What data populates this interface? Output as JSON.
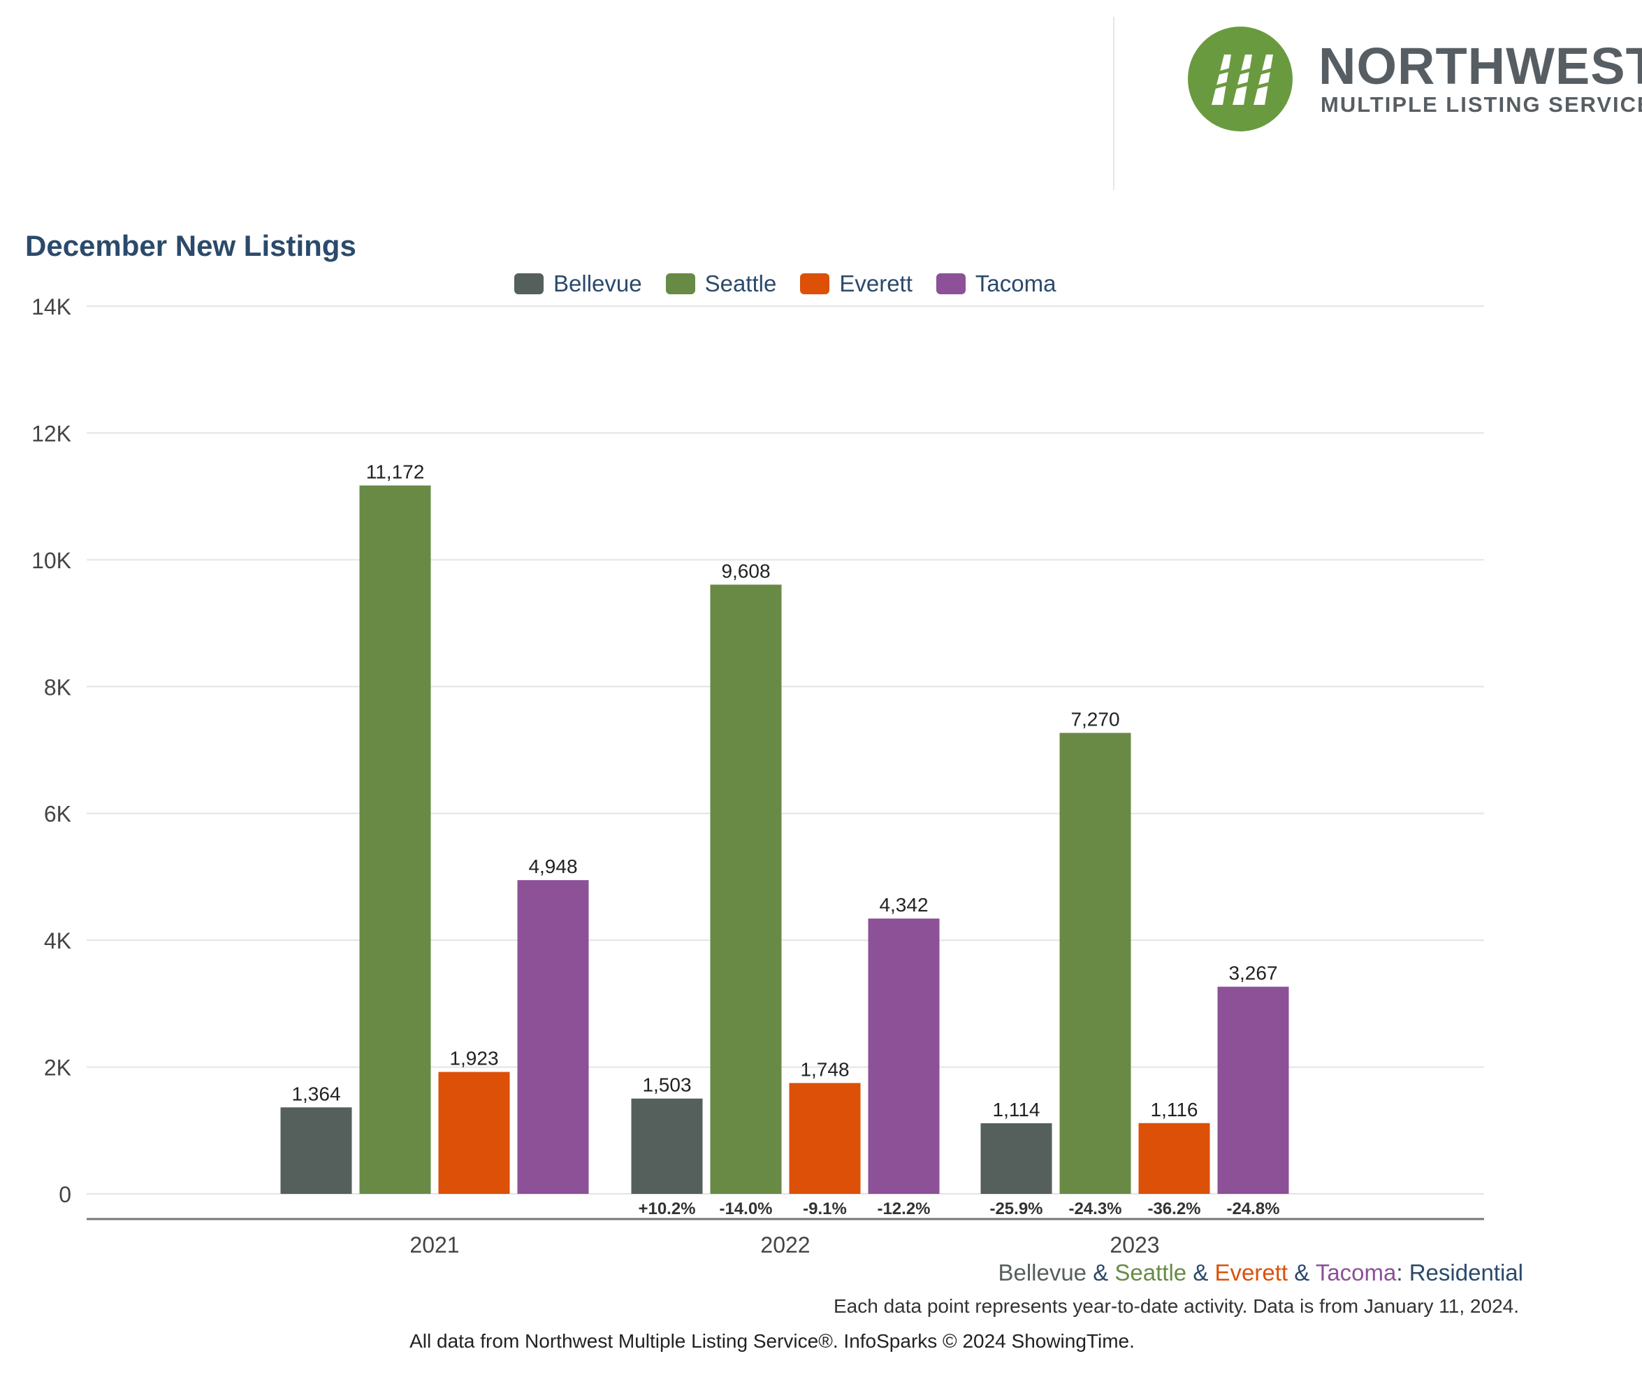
{
  "header": {
    "logo_name": "NORTHWEST",
    "logo_subtitle": "MULTIPLE LISTING SERVICE."
  },
  "chart_data": {
    "type": "bar",
    "title": "December New Listings",
    "categories": [
      "2021",
      "2022",
      "2023"
    ],
    "series": [
      {
        "name": "Bellevue",
        "color": "#555f5c",
        "values": [
          1364,
          1503,
          1114
        ],
        "labels": [
          "1,364",
          "1,503",
          "1,114"
        ],
        "changes": [
          null,
          "+10.2%",
          "-25.9%"
        ]
      },
      {
        "name": "Seattle",
        "color": "#688a45",
        "values": [
          11172,
          9608,
          7270
        ],
        "labels": [
          "11,172",
          "9,608",
          "7,270"
        ],
        "changes": [
          null,
          "-14.0%",
          "-24.3%"
        ]
      },
      {
        "name": "Everett",
        "color": "#dc5008",
        "values": [
          1923,
          1748,
          1116
        ],
        "labels": [
          "1,923",
          "1,748",
          "1,116"
        ],
        "changes": [
          null,
          "-9.1%",
          "-36.2%"
        ]
      },
      {
        "name": "Tacoma",
        "color": "#8c5197",
        "values": [
          4948,
          4342,
          3267
        ],
        "labels": [
          "4,948",
          "4,342",
          "3,267"
        ],
        "changes": [
          null,
          "-12.2%",
          "-24.8%"
        ]
      }
    ],
    "ylim": [
      0,
      14000
    ],
    "yticks": [
      0,
      2000,
      4000,
      6000,
      8000,
      10000,
      12000,
      14000
    ],
    "ytick_labels": [
      "0",
      "2K",
      "4K",
      "6K",
      "8K",
      "10K",
      "12K",
      "14K"
    ],
    "grid": true,
    "legend_position": "top-center",
    "xlabel": "",
    "ylabel": ""
  },
  "subinfo": {
    "areas": [
      {
        "name": "Bellevue",
        "color": "#555f5c"
      },
      {
        "name": "Seattle",
        "color": "#688a45"
      },
      {
        "name": "Everett",
        "color": "#dc5008"
      },
      {
        "name": "Tacoma",
        "color": "#8c5197"
      }
    ],
    "separator": "&",
    "property_type": ": Residential",
    "property_type_color": "#2b4a6b"
  },
  "note": "Each data point represents year-to-date activity. Data is from January 11, 2024.",
  "footer": "All data from Northwest Multiple Listing Service®. InfoSparks © 2024 ShowingTime."
}
